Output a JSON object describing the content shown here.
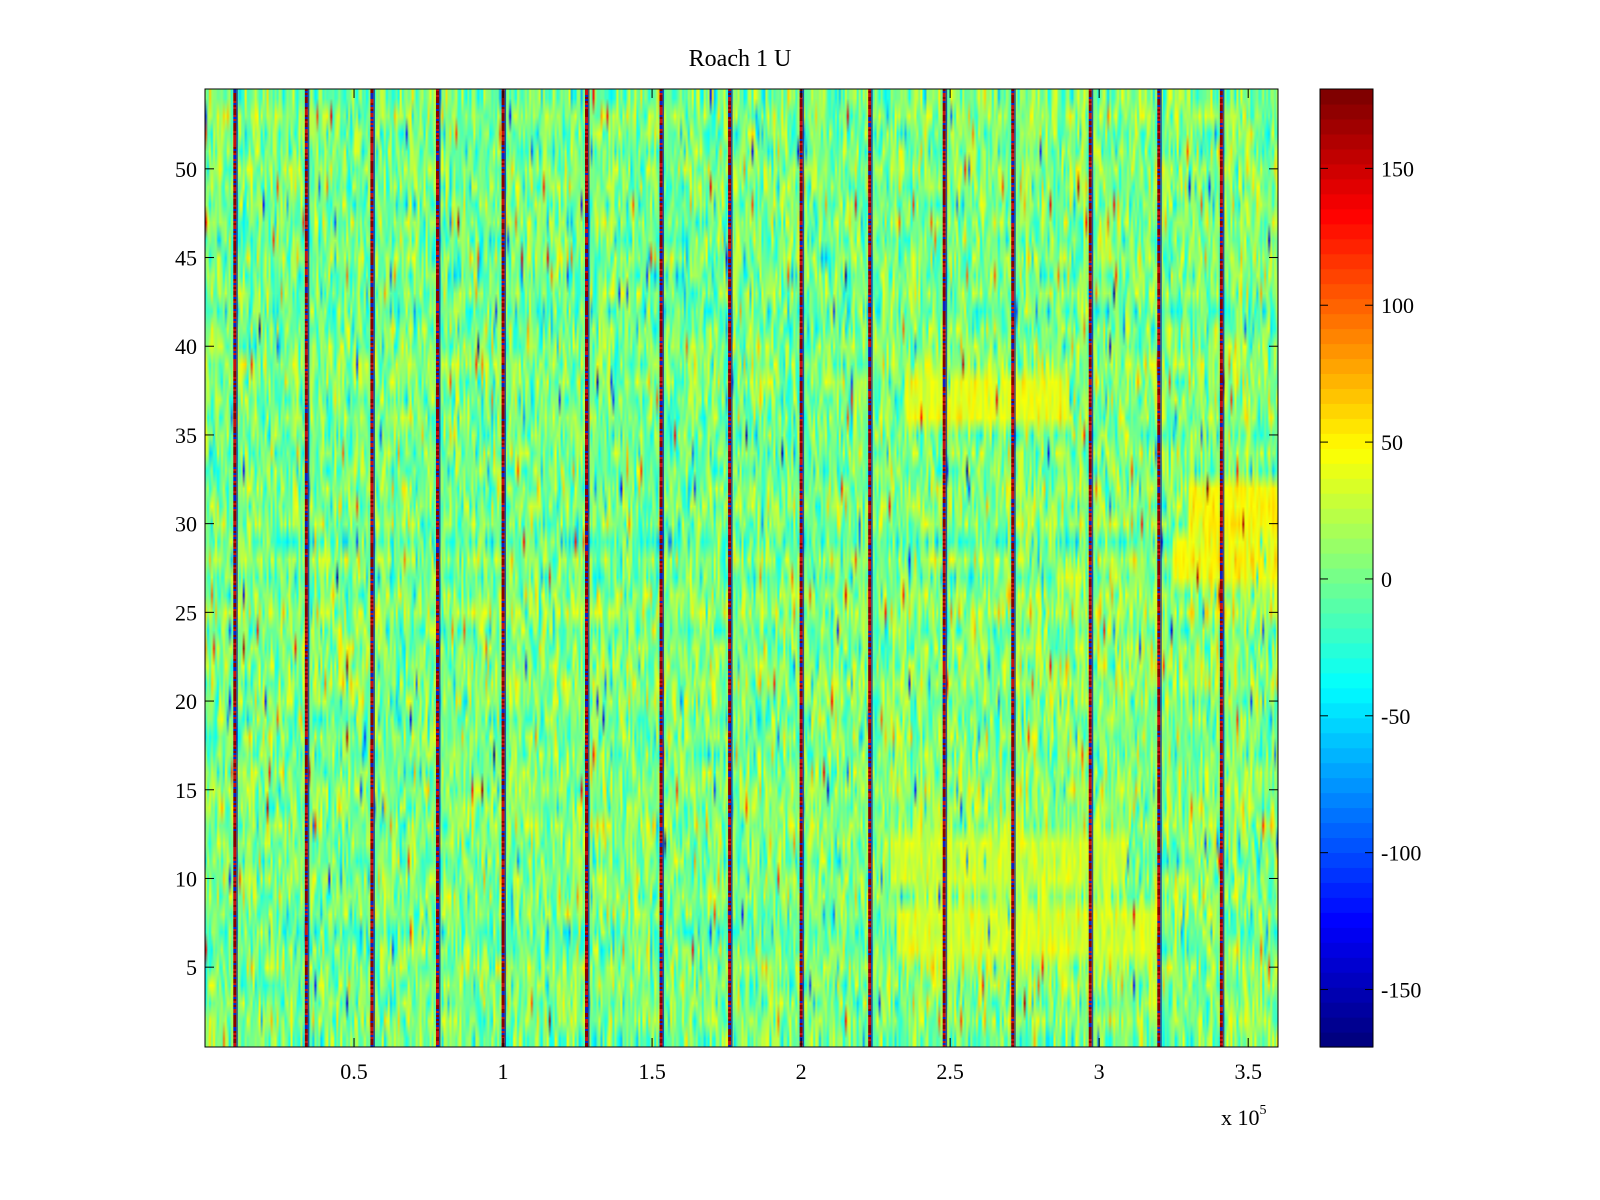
{
  "chart_data": {
    "type": "heatmap",
    "title": "Roach 1 U",
    "xlabel": "",
    "ylabel": "",
    "x_range": [
      0,
      360000
    ],
    "y_range": [
      0.5,
      54.5
    ],
    "rows": 54,
    "x_ticks": [
      {
        "value": 50000,
        "label": "0.5"
      },
      {
        "value": 100000,
        "label": "1"
      },
      {
        "value": 150000,
        "label": "1.5"
      },
      {
        "value": 200000,
        "label": "2"
      },
      {
        "value": 250000,
        "label": "2.5"
      },
      {
        "value": 300000,
        "label": "3"
      },
      {
        "value": 350000,
        "label": "3.5"
      }
    ],
    "x_multiplier": {
      "base": "x 10",
      "exponent": "5"
    },
    "y_ticks": [
      {
        "value": 5,
        "label": "5"
      },
      {
        "value": 10,
        "label": "10"
      },
      {
        "value": 15,
        "label": "15"
      },
      {
        "value": 20,
        "label": "20"
      },
      {
        "value": 25,
        "label": "25"
      },
      {
        "value": 30,
        "label": "30"
      },
      {
        "value": 35,
        "label": "35"
      },
      {
        "value": 40,
        "label": "40"
      },
      {
        "value": 45,
        "label": "45"
      },
      {
        "value": 50,
        "label": "50"
      }
    ],
    "colorbar": {
      "range": [
        -171,
        179
      ],
      "colormap": "jet",
      "ticks": [
        {
          "value": -150,
          "label": "-150"
        },
        {
          "value": -100,
          "label": "-100"
        },
        {
          "value": -50,
          "label": "-50"
        },
        {
          "value": 0,
          "label": "0"
        },
        {
          "value": 50,
          "label": "50"
        },
        {
          "value": 100,
          "label": "100"
        },
        {
          "value": 150,
          "label": "150"
        }
      ]
    },
    "background_level": {
      "mean": 2,
      "spread": 45
    },
    "spike_columns_x": [
      10000,
      34000,
      56000,
      78000,
      100000,
      128000,
      153000,
      176000,
      200000,
      223000,
      248000,
      271000,
      297000,
      320000,
      341000
    ],
    "high_blocks": [
      {
        "x_start": 235000,
        "x_end": 290000,
        "y_start": 36,
        "y_end": 38,
        "value": 38
      },
      {
        "x_start": 330000,
        "x_end": 360000,
        "y_start": 30,
        "y_end": 32,
        "value": 45
      },
      {
        "x_start": 325000,
        "x_end": 360000,
        "y_start": 27,
        "y_end": 29,
        "value": 45
      },
      {
        "x_start": 232000,
        "x_end": 320000,
        "y_start": 6,
        "y_end": 8,
        "value": 35
      },
      {
        "x_start": 230000,
        "x_end": 310000,
        "y_start": 10,
        "y_end": 12,
        "value": 28
      }
    ]
  }
}
